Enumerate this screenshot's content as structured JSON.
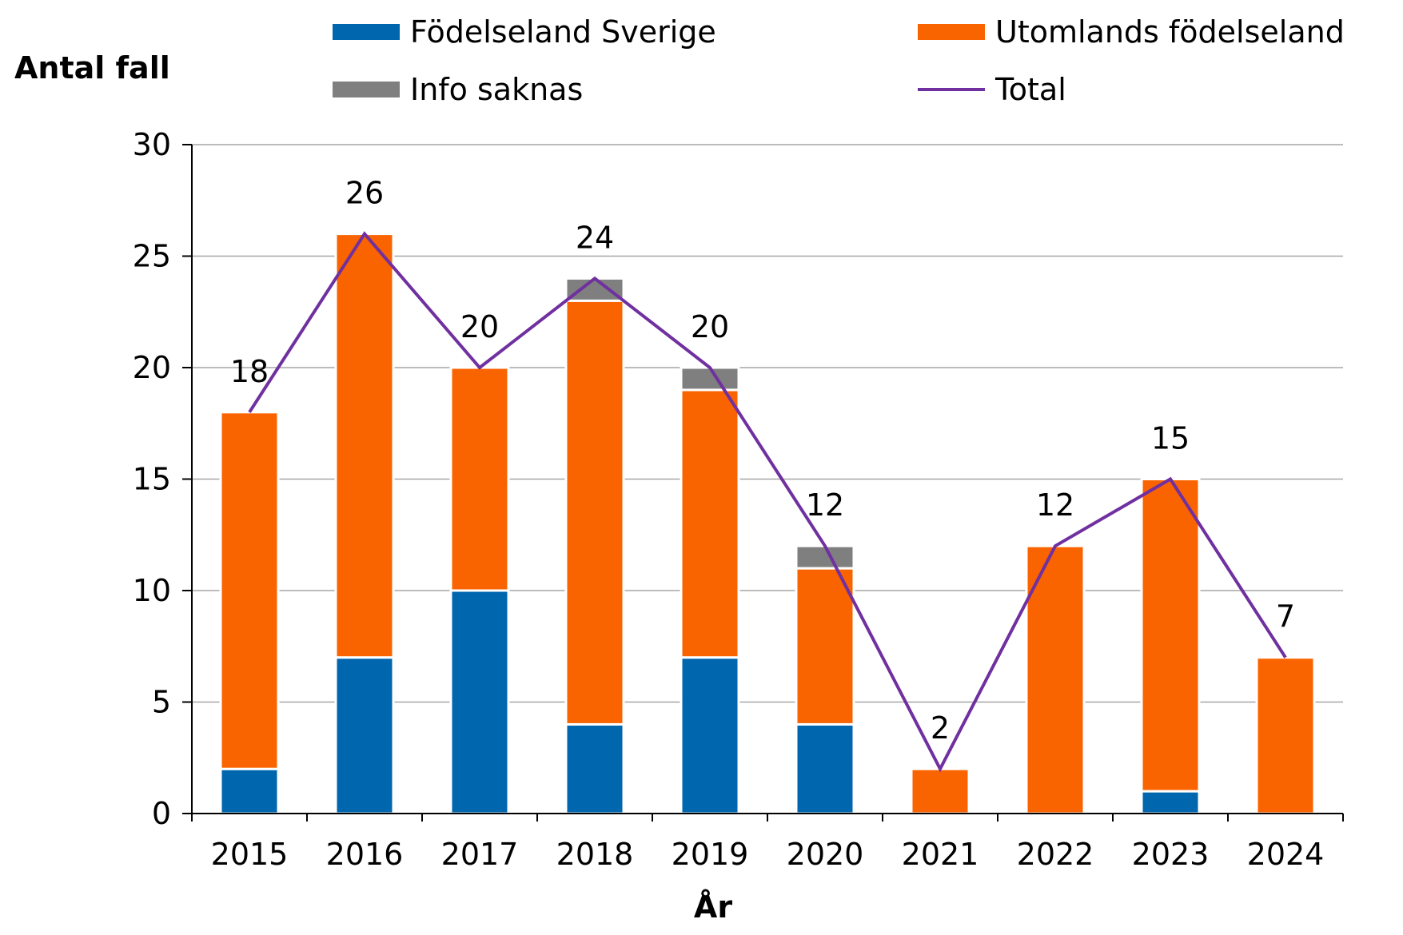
{
  "chart_data": {
    "type": "bar",
    "stacked": true,
    "categories": [
      "2015",
      "2016",
      "2017",
      "2018",
      "2019",
      "2020",
      "2021",
      "2022",
      "2023",
      "2024"
    ],
    "series": [
      {
        "name": "Födelseland Sverige",
        "type": "bar",
        "color": "#0066AE",
        "values": [
          2,
          7,
          10,
          4,
          7,
          4,
          0,
          0,
          1,
          0
        ]
      },
      {
        "name": "Utomlands födelseland",
        "type": "bar",
        "color": "#FA6400",
        "values": [
          16,
          19,
          10,
          19,
          12,
          7,
          2,
          12,
          14,
          7
        ]
      },
      {
        "name": "Info saknas",
        "type": "bar",
        "color": "#7F7F7F",
        "values": [
          0,
          0,
          0,
          1,
          1,
          1,
          0,
          0,
          0,
          0
        ]
      },
      {
        "name": "Total",
        "type": "line",
        "color": "#7030A0",
        "values": [
          18,
          26,
          20,
          24,
          20,
          12,
          2,
          12,
          15,
          7
        ]
      }
    ],
    "data_labels": [
      "18",
      "26",
      "20",
      "24",
      "20",
      "12",
      "2",
      "12",
      "15",
      "7"
    ],
    "ylabel": "Antal fall",
    "xlabel": "År",
    "ylim": [
      0,
      30
    ],
    "yticks": [
      "0",
      "5",
      "10",
      "15",
      "20",
      "25",
      "30"
    ],
    "grid": true,
    "legend_position": "top"
  }
}
